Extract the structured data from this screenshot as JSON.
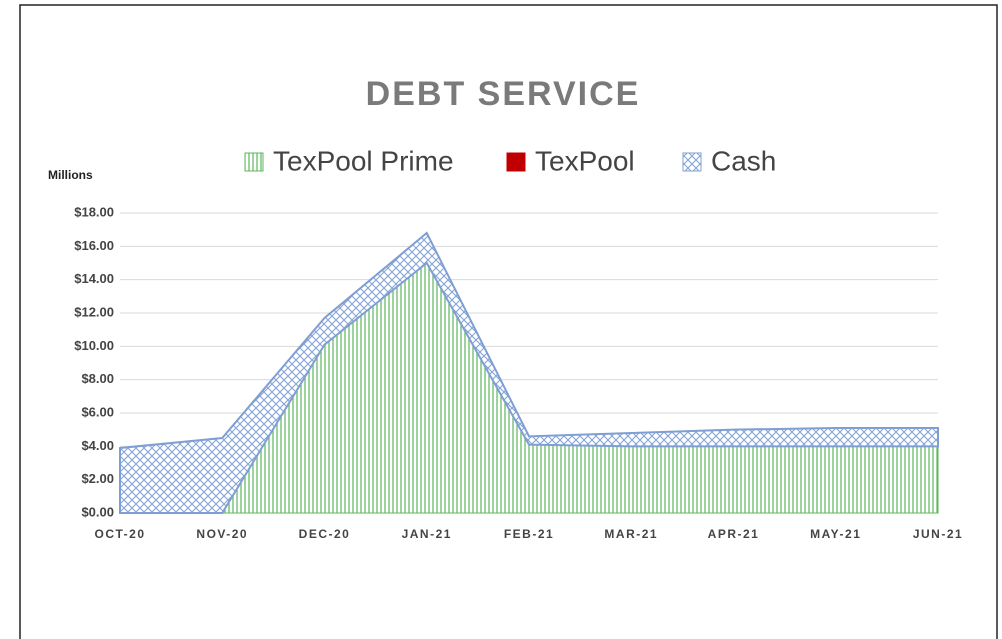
{
  "chart_data": {
    "type": "stacked_area",
    "title": "DEBT SERVICE",
    "y_axis_label": "Millions",
    "categories": [
      "OCT-20",
      "NOV-20",
      "DEC-20",
      "JAN-21",
      "FEB-21",
      "MAR-21",
      "APR-21",
      "MAY-21",
      "JUN-21"
    ],
    "series": [
      {
        "name": "TexPool Prime",
        "color": "#5cb85c",
        "values": [
          0,
          0,
          10.1,
          15,
          4.1,
          4,
          4,
          4,
          4
        ]
      },
      {
        "name": "TexPool",
        "color": "#c00000",
        "values": [
          0,
          0,
          0,
          0,
          0,
          0,
          0,
          0,
          0
        ]
      },
      {
        "name": "Cash",
        "color": "#7f9fd4",
        "values": [
          3.9,
          4.5,
          1.6,
          1.8,
          0.5,
          0.8,
          1.0,
          1.1,
          1.1
        ]
      }
    ],
    "ylim": [
      0,
      18
    ],
    "yticks": [
      {
        "value": 0,
        "label": "$0.00"
      },
      {
        "value": 2,
        "label": "$2.00"
      },
      {
        "value": 4,
        "label": "$4.00"
      },
      {
        "value": 6,
        "label": "$6.00"
      },
      {
        "value": 8,
        "label": "$8.00"
      },
      {
        "value": 10,
        "label": "$10.00"
      },
      {
        "value": 12,
        "label": "$12.00"
      },
      {
        "value": 14,
        "label": "$14.00"
      },
      {
        "value": 16,
        "label": "$16.00"
      },
      {
        "value": 18,
        "label": "$18.00"
      }
    ],
    "grid": true,
    "legend": "top"
  }
}
